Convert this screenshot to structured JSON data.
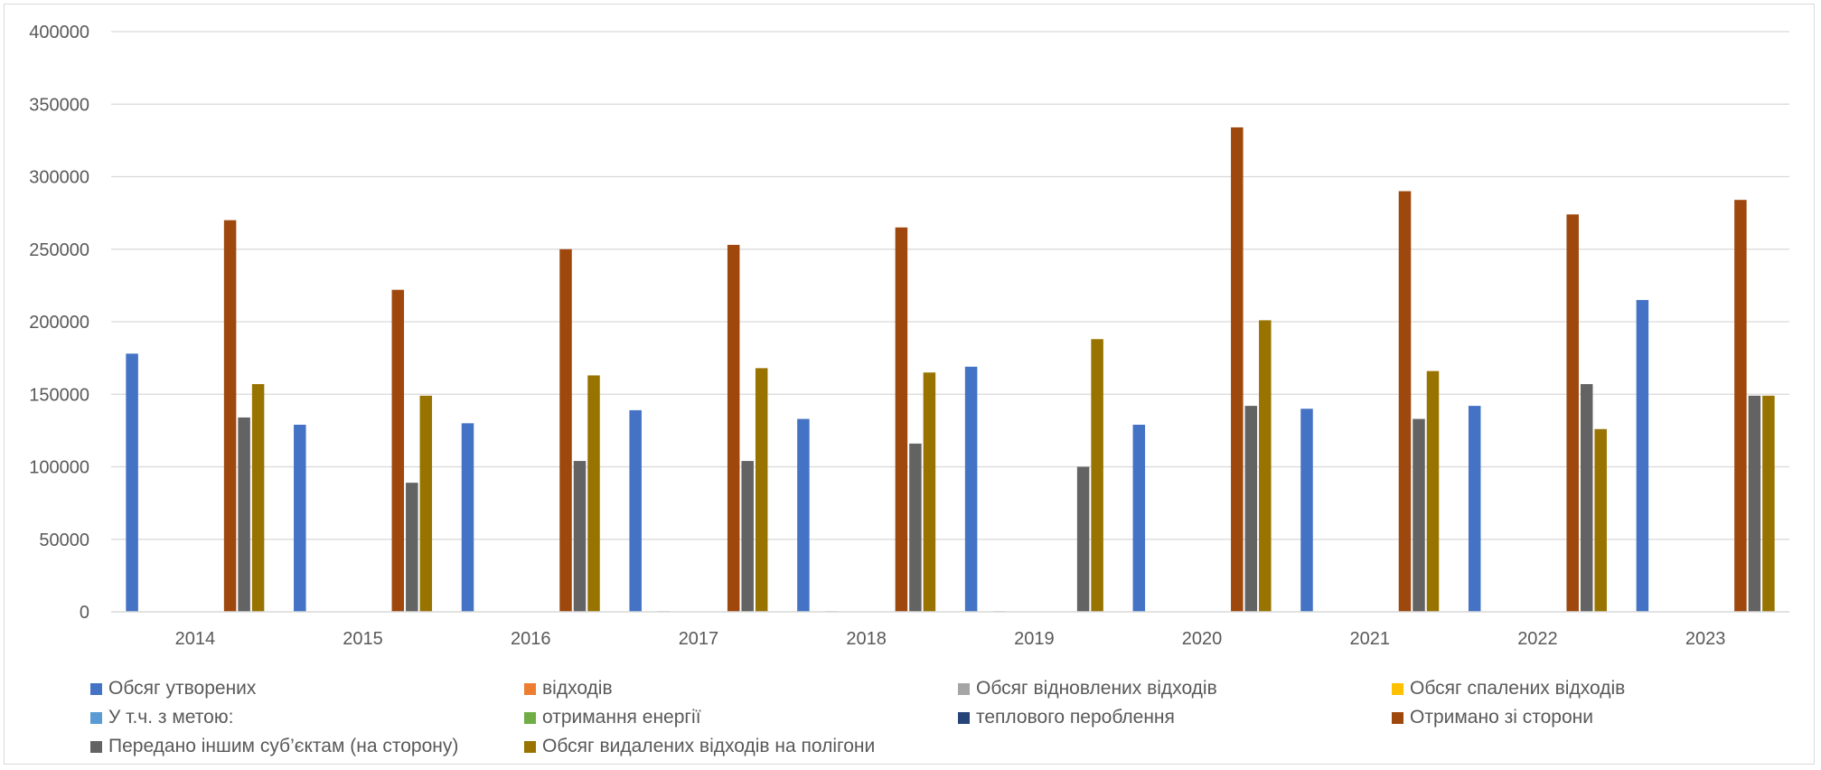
{
  "chart_data": {
    "type": "bar",
    "categories": [
      "2014",
      "2015",
      "2016",
      "2017",
      "2018",
      "2019",
      "2020",
      "2021",
      "2022",
      "2023"
    ],
    "ylim": [
      0,
      400000
    ],
    "yticks": [
      "0",
      "50000",
      "100000",
      "150000",
      "200000",
      "250000",
      "300000",
      "350000",
      "400000"
    ],
    "grid": true,
    "legend_position": "bottom",
    "series": [
      {
        "name": "Обсяг утворених",
        "color": "#4472c4",
        "values": [
          178000,
          129000,
          130000,
          139000,
          133000,
          169000,
          129000,
          140000,
          142000,
          215000
        ]
      },
      {
        "name": "відходів",
        "color": "#ed7d31",
        "values": [
          0,
          0,
          0,
          0,
          0,
          0,
          0,
          0,
          0,
          0
        ]
      },
      {
        "name": "Обсяг відновлених відходів",
        "color": "#a5a5a5",
        "values": [
          0,
          0,
          0,
          500,
          500,
          500,
          0,
          0,
          0,
          0
        ]
      },
      {
        "name": "Обсяг спалених відходів",
        "color": "#ffc000",
        "values": [
          0,
          0,
          0,
          0,
          0,
          0,
          0,
          0,
          0,
          0
        ]
      },
      {
        "name": "У т.ч. з метою:",
        "color": "#5b9bd5",
        "values": [
          0,
          0,
          0,
          0,
          0,
          0,
          0,
          0,
          0,
          0
        ]
      },
      {
        "name": "отримання енергії",
        "color": "#70ad47",
        "values": [
          0,
          0,
          0,
          0,
          0,
          0,
          0,
          0,
          0,
          0
        ]
      },
      {
        "name": "теплового пероблення",
        "color": "#264478",
        "values": [
          0,
          0,
          0,
          0,
          0,
          0,
          0,
          0,
          0,
          0
        ]
      },
      {
        "name": "Отримано зі сторони",
        "color": "#9e480e",
        "values": [
          270000,
          222000,
          250000,
          253000,
          265000,
          0,
          334000,
          290000,
          274000,
          284000
        ]
      },
      {
        "name": "Передано іншим суб’єктам (на сторону)",
        "color": "#636363",
        "values": [
          134000,
          89000,
          104000,
          104000,
          116000,
          100000,
          142000,
          133000,
          157000,
          149000
        ]
      },
      {
        "name": "Обсяг видалених відходів на полігони",
        "color": "#997300",
        "values": [
          157000,
          149000,
          163000,
          168000,
          165000,
          188000,
          201000,
          166000,
          126000,
          149000
        ]
      }
    ]
  }
}
